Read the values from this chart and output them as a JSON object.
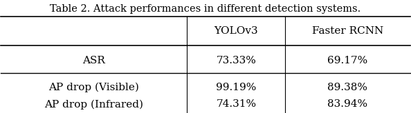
{
  "title": "Table 2. Attack performances in different detection systems.",
  "col_headers": [
    "",
    "YOLOv3",
    "Faster RCNN"
  ],
  "rows": [
    [
      "ASR",
      "73.33%",
      "69.17%"
    ],
    [
      "AP drop (Visible)",
      "99.19%",
      "89.38%"
    ],
    [
      "AP drop (Infrared)",
      "74.31%",
      "83.94%"
    ]
  ],
  "bg_color": "#ffffff",
  "text_color": "#000000",
  "line_color": "#000000",
  "title_fontsize": 10.5,
  "header_fontsize": 11,
  "cell_fontsize": 11,
  "fig_width": 5.94,
  "fig_height": 1.64,
  "dpi": 100
}
